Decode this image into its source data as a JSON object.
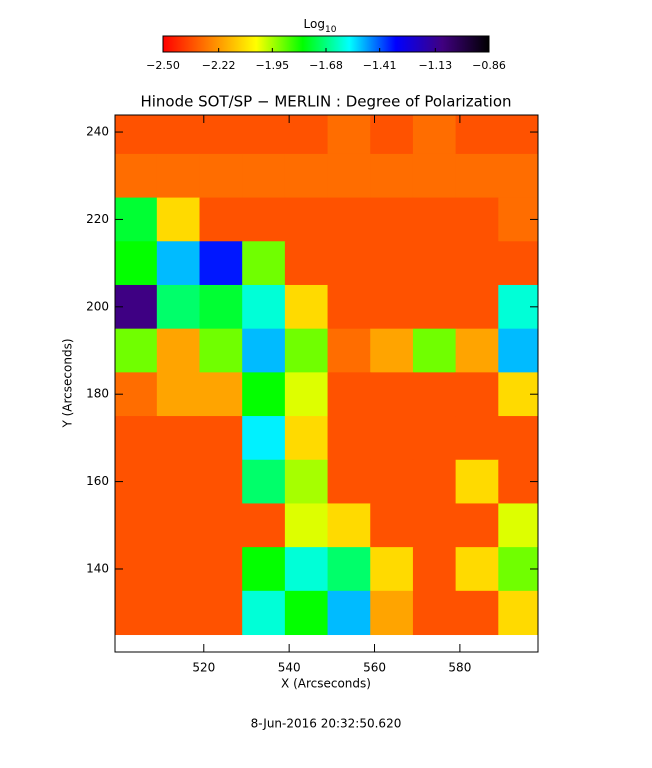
{
  "chart_data": {
    "type": "heatmap",
    "title": "Hinode SOT/SP − MERLIN : Degree of Polarization",
    "x_label": "X (Arcseconds)",
    "y_label": "Y (Arcseconds)",
    "colorbar_label": "Log",
    "colorbar_label_sub": "10",
    "footer": "8-Jun-2016 20:32:50.620",
    "xlim": [
      499.2,
      598.3
    ],
    "ylim": [
      121.0,
      243.9
    ],
    "xticks": [
      520,
      540,
      560,
      580
    ],
    "yticks": [
      140,
      160,
      180,
      200,
      220,
      240
    ],
    "clim": [
      -2.5,
      -0.86
    ],
    "cticks": [
      {
        "value": -2.5,
        "label": "−2.50"
      },
      {
        "value": -2.22,
        "label": "−2.22"
      },
      {
        "value": -1.95,
        "label": "−1.95"
      },
      {
        "value": -1.68,
        "label": "−1.68"
      },
      {
        "value": -1.41,
        "label": "−1.41"
      },
      {
        "value": -1.13,
        "label": "−1.13"
      },
      {
        "value": -0.86,
        "label": "−0.86"
      }
    ],
    "colormap": [
      "#ff0000",
      "#ff8000",
      "#ffff00",
      "#00ff00",
      "#00ffff",
      "#0000ff",
      "#400080",
      "#000000"
    ],
    "x": [
      504,
      514,
      524,
      534,
      544,
      554,
      564,
      574,
      584,
      594
    ],
    "y": [
      240,
      230,
      220,
      210,
      200,
      190,
      180,
      170,
      160,
      150,
      140,
      130
    ],
    "z": [
      [
        -2.35,
        -2.35,
        -2.35,
        -2.35,
        -2.35,
        -2.3,
        -2.35,
        -2.3,
        -2.35,
        -2.35
      ],
      [
        -2.3,
        -2.3,
        -2.3,
        -2.3,
        -2.3,
        -2.3,
        -2.3,
        -2.3,
        -2.3,
        -2.3
      ],
      [
        -1.75,
        -2.1,
        -2.35,
        -2.35,
        -2.35,
        -2.35,
        -2.35,
        -2.35,
        -2.35,
        -2.3
      ],
      [
        -1.8,
        -1.5,
        -1.35,
        -1.9,
        -2.35,
        -2.35,
        -2.35,
        -2.35,
        -2.35,
        -2.35
      ],
      [
        -1.1,
        -1.7,
        -1.75,
        -1.6,
        -2.1,
        -2.35,
        -2.35,
        -2.35,
        -2.35,
        -1.6
      ],
      [
        -1.9,
        -2.2,
        -1.9,
        -1.5,
        -1.9,
        -2.3,
        -2.2,
        -1.9,
        -2.2,
        -1.5
      ],
      [
        -2.3,
        -2.2,
        -2.2,
        -1.8,
        -2.0,
        -2.35,
        -2.35,
        -2.35,
        -2.35,
        -2.1
      ],
      [
        -2.35,
        -2.35,
        -2.35,
        -1.55,
        -2.1,
        -2.35,
        -2.35,
        -2.35,
        -2.35,
        -2.35
      ],
      [
        -2.35,
        -2.35,
        -2.35,
        -1.7,
        -1.95,
        -2.35,
        -2.35,
        -2.35,
        -2.1,
        -2.35
      ],
      [
        -2.35,
        -2.35,
        -2.35,
        -2.35,
        -2.0,
        -2.1,
        -2.35,
        -2.35,
        -2.35,
        -2.0
      ],
      [
        -2.35,
        -2.35,
        -2.35,
        -1.8,
        -1.6,
        -1.7,
        -2.1,
        -2.35,
        -2.1,
        -1.9
      ],
      [
        -2.35,
        -2.35,
        -2.35,
        -1.6,
        -1.8,
        -1.5,
        -2.2,
        -2.35,
        -2.35,
        -2.1
      ]
    ]
  }
}
